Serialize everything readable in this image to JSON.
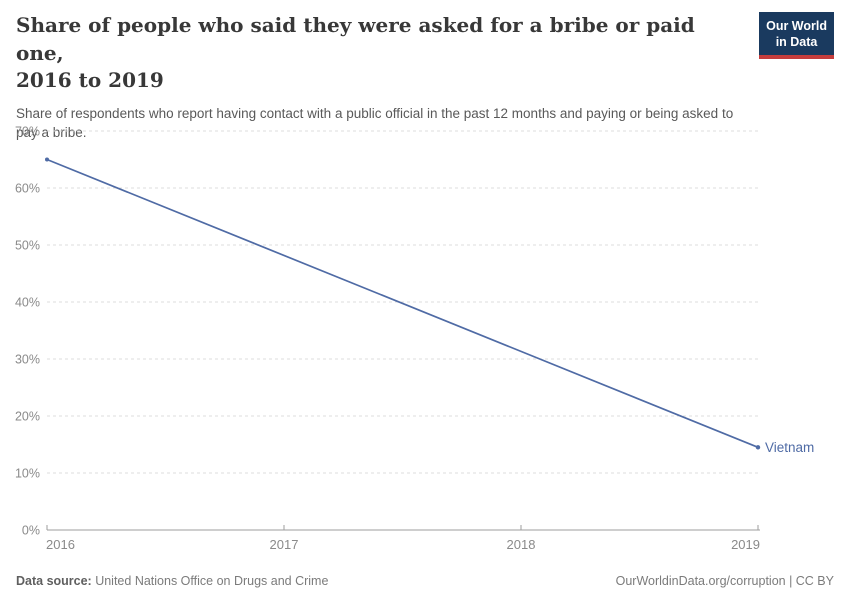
{
  "header": {
    "title": "Share of people who said they were asked for a bribe or paid one,\n2016 to 2019",
    "subtitle": "Share of respondents who report having contact with a public official in the past 12 months and paying or being asked to\npay a bribe.",
    "logo": {
      "line1": "Our World",
      "line2": "in Data"
    }
  },
  "chart_data": {
    "type": "line",
    "title": "Share of people who said they were asked for a bribe or paid one, 2016 to 2019",
    "x": [
      2016,
      2019
    ],
    "series": [
      {
        "name": "Vietnam",
        "values": [
          65,
          14.5
        ],
        "color": "#4f6ba5"
      }
    ],
    "xlabel": "",
    "ylabel": "",
    "ylim": [
      0,
      70
    ],
    "yticks": [
      0,
      10,
      20,
      30,
      40,
      50,
      60,
      70
    ],
    "ytick_suffix": "%",
    "xticks": [
      2016,
      2017,
      2018,
      2019
    ],
    "grid": "horizontal-dashed",
    "legend": "line-end-label"
  },
  "footer": {
    "datasource_label": "Data source:",
    "datasource_value": " United Nations Office on Drugs and Crime",
    "link": "OurWorldinData.org/corruption | CC BY"
  },
  "colors": {
    "line": "#4f6ba5",
    "grid": "#dcdcdc",
    "axis": "#9e9e9e",
    "tick_label": "#8a8a8a",
    "logo_navy": "#1a3a5f",
    "logo_red": "#c53d3d"
  }
}
